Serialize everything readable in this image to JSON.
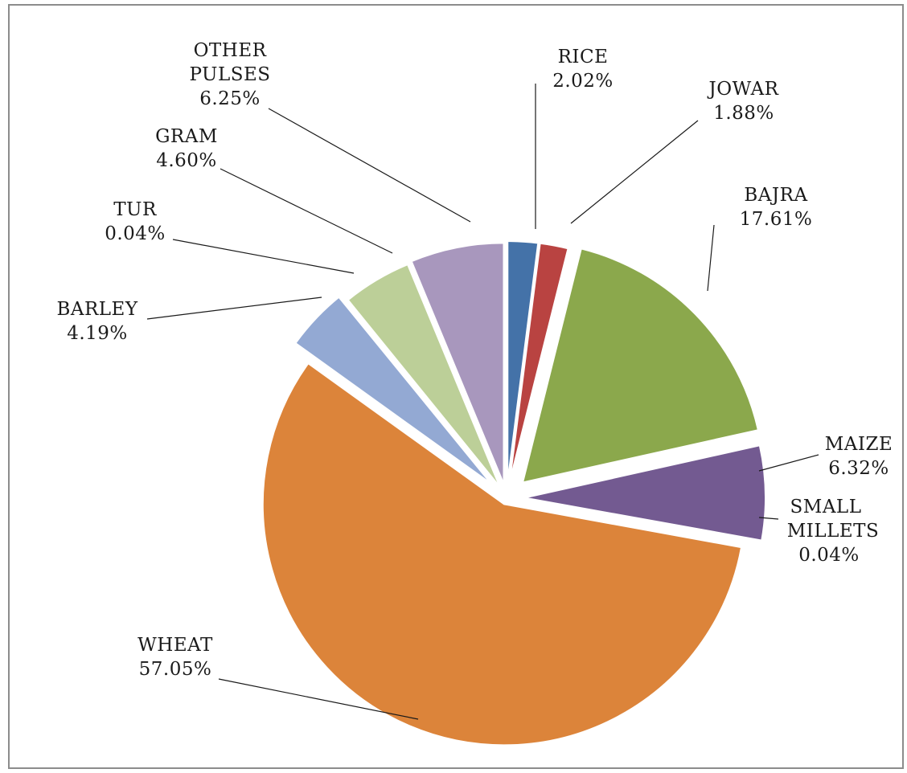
{
  "chart_data": {
    "type": "pie",
    "title": "",
    "slices": [
      {
        "name": "RICE",
        "value": 2.02,
        "label": "2.02%",
        "color": "#4472a8"
      },
      {
        "name": "JOWAR",
        "value": 1.88,
        "label": "1.88%",
        "color": "#b94341"
      },
      {
        "name": "BAJRA",
        "value": 17.61,
        "label": "17.61%",
        "color": "#8ba84c"
      },
      {
        "name": "MAIZE",
        "value": 6.32,
        "label": "6.32%",
        "color": "#735a91"
      },
      {
        "name": "SMALL MILLETS",
        "value": 0.04,
        "label": "0.04%",
        "color": "#4aa6c4"
      },
      {
        "name": "WHEAT",
        "value": 57.05,
        "label": "57.05%",
        "color": "#dc843a"
      },
      {
        "name": "BARLEY",
        "value": 4.19,
        "label": "4.19%",
        "color": "#93a9d3"
      },
      {
        "name": "TUR",
        "value": 0.04,
        "label": "0.04%",
        "color": "#d49897"
      },
      {
        "name": "GRAM",
        "value": 4.6,
        "label": "4.60%",
        "color": "#bccf98"
      },
      {
        "name": "OTHER PULSES",
        "value": 6.25,
        "label": "6.25%",
        "color": "#a897bd"
      }
    ],
    "start_angle": "12 o'clock",
    "direction": "clockwise",
    "exploded": true,
    "legend": "none (data labels with leader lines)"
  }
}
